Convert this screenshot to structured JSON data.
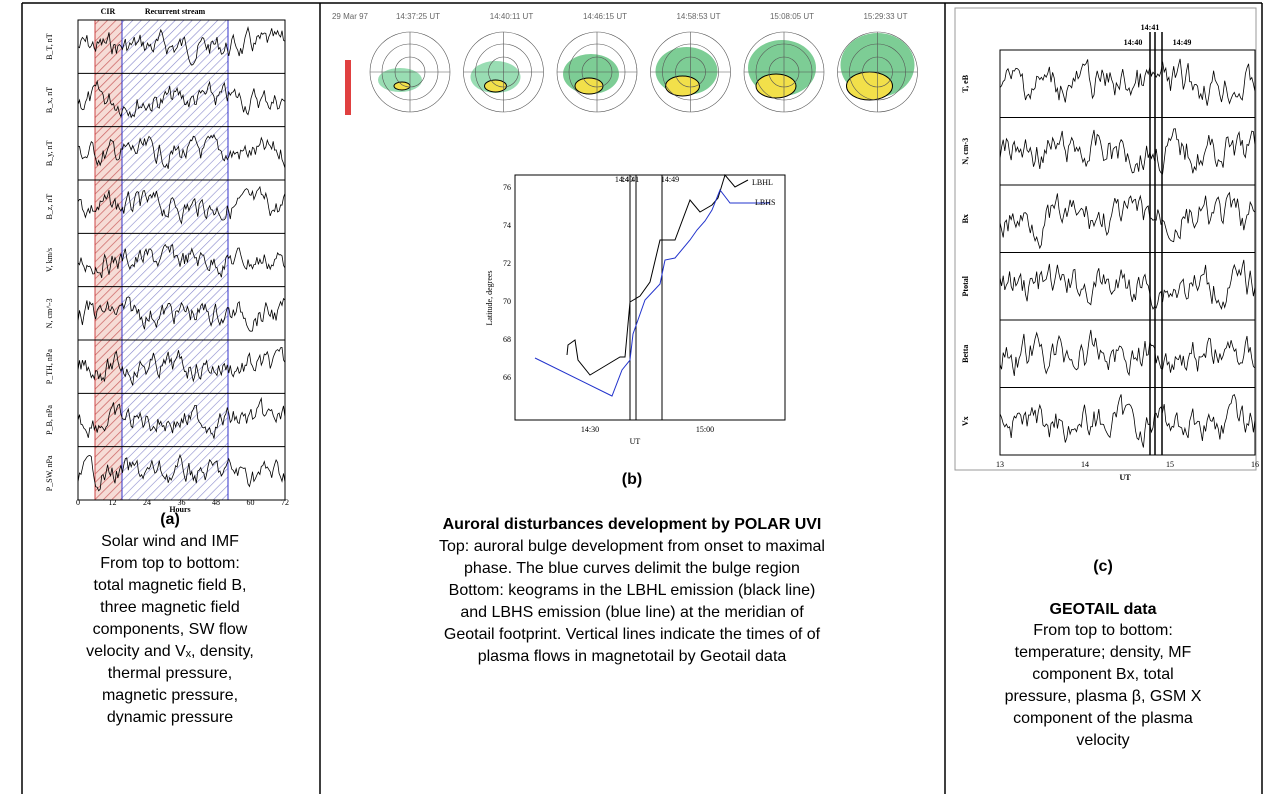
{
  "panel_a": {
    "label": "(a)",
    "regions": [
      "CIR",
      "Recurrent stream"
    ],
    "y_labels": [
      "B_T, nT",
      "B_x, nT",
      "B_y, nT",
      "B_z, nT",
      "V, km/s",
      "N, cm^-3",
      "P_TH, nPa",
      "P_B, nPa",
      "P_SW, nPa"
    ],
    "x_ticks": [
      "0",
      "12",
      "24",
      "36",
      "48",
      "60",
      "72"
    ],
    "x_label": "Hours",
    "caption": [
      "Solar wind and IMF",
      "From top to bottom:",
      "total magnetic field B,",
      "three magnetic field",
      "components, SW flow",
      "velocity and Vₓ, density,",
      "thermal pressure,",
      "magnetic pressure,",
      "dynamic pressure"
    ]
  },
  "panel_b": {
    "label": "(b)",
    "date": "29 Mar 97",
    "times": [
      "14:37:25 UT",
      "14:40:11 UT",
      "14:46:15 UT",
      "14:58:53 UT",
      "15:08:05 UT",
      "15:29:33 UT"
    ],
    "y_label": "Latitude, degrees",
    "y_ticks": [
      "66",
      "68",
      "70",
      "72",
      "74",
      "76"
    ],
    "x_ticks": [
      "14:30",
      "15:00"
    ],
    "x_label": "UT",
    "markers": [
      "14:40",
      "14:41",
      "14:49"
    ],
    "series": [
      "LBHL",
      "LBHS"
    ],
    "caption_title": "Auroral disturbances development by POLAR UVI",
    "caption": [
      "Top: auroral bulge development from onset to maximal",
      "phase. The blue curves delimit the bulge region",
      "Bottom: keograms in the LBHL emission (black line)",
      "and LBHS emission (blue line) at the meridian of",
      "Geotail footprint. Vertical lines indicate the times of of",
      "plasma flows in magnetotail by Geotail data"
    ]
  },
  "panel_c": {
    "label": "(c)",
    "markers": [
      "14:41",
      "14:40",
      "14:49"
    ],
    "y_labels": [
      "T, eB",
      "N, cm-3",
      "Bx",
      "Ptotal",
      "Betta",
      "Vx"
    ],
    "x_ticks": [
      "13",
      "14",
      "15",
      "16"
    ],
    "x_label": "UT",
    "caption_title": "GEOTAIL data",
    "caption": [
      "From top to bottom:",
      "temperature; density, MF",
      "component Bx, total",
      "pressure, plasma β, GSM X",
      "component of the plasma",
      "velocity"
    ]
  }
}
